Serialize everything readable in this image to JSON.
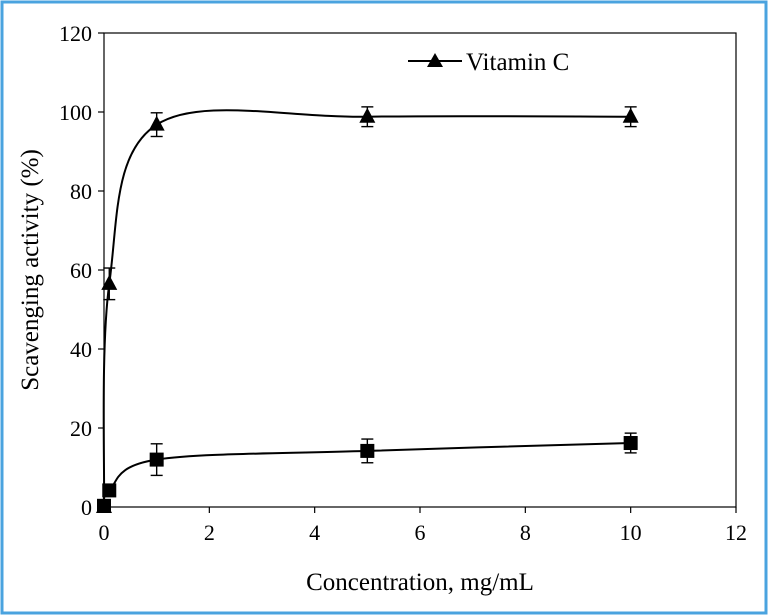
{
  "chart_data": {
    "type": "line",
    "xlabel": "Concentration, mg/mL",
    "ylabel": "Scavenging activity (%)",
    "xlim": [
      0,
      12
    ],
    "ylim": [
      0,
      120
    ],
    "x_ticks": [
      0,
      2,
      4,
      6,
      8,
      10,
      12
    ],
    "y_ticks": [
      0,
      20,
      40,
      60,
      80,
      100,
      120
    ],
    "x_tick_labels": [
      "0",
      "2",
      "4",
      "6",
      "8",
      "10",
      "12"
    ],
    "y_tick_labels": [
      "0",
      "20",
      "40",
      "60",
      "80",
      "100",
      "120"
    ],
    "grid": false,
    "legend_position": "top-right",
    "frame_color": "#4aa3df",
    "series": [
      {
        "name": "Vitamin C",
        "marker": "triangle",
        "color": "#000000",
        "x": [
          0,
          0.1,
          1,
          5,
          10
        ],
        "y": [
          0,
          56.5,
          96.8,
          98.8,
          98.8
        ],
        "error": [
          0,
          4,
          3,
          2.5,
          2.5
        ]
      },
      {
        "marker": "square",
        "color": "#000000",
        "x": [
          0,
          0.1,
          1,
          5,
          10
        ],
        "y": [
          0.3,
          4.2,
          12.0,
          14.2,
          16.2
        ],
        "error": [
          0,
          1,
          4,
          3,
          2.5
        ]
      }
    ]
  }
}
